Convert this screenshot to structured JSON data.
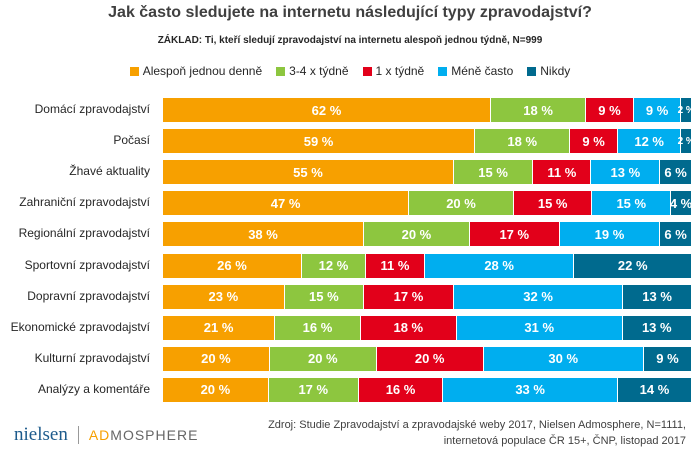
{
  "chart_data": {
    "type": "bar",
    "orientation": "horizontal-stacked-100",
    "title": "Jak často sledujete na internetu následující typy zpravodajství?",
    "subtitle": "ZÁKLAD: Ti, kteří sledují zpravodajství na internetu alespoň jednou týdně, N=999",
    "legend_position": "top",
    "categories": [
      "Domácí zpravodajství",
      "Počasí",
      "Žhavé aktuality",
      "Zahraniční zpravodajství",
      "Regionální zpravodajství",
      "Sportovní zpravodajství",
      "Dopravní zpravodajství",
      "Ekonomické zpravodajství",
      "Kulturní zpravodajství",
      "Analýzy a komentáře"
    ],
    "series": [
      {
        "name": "Alespoň jednou denně",
        "color": "#f7a000",
        "values": [
          62,
          59,
          55,
          47,
          38,
          26,
          23,
          21,
          20,
          20
        ]
      },
      {
        "name": "3-4 x týdně",
        "color": "#8dc63f",
        "values": [
          18,
          18,
          15,
          20,
          20,
          12,
          15,
          16,
          20,
          17
        ]
      },
      {
        "name": "1 x týdně",
        "color": "#e2001a",
        "values": [
          9,
          9,
          11,
          15,
          17,
          11,
          17,
          18,
          20,
          16
        ]
      },
      {
        "name": "Méně často",
        "color": "#00aeef",
        "values": [
          9,
          12,
          13,
          15,
          19,
          28,
          32,
          31,
          30,
          33
        ]
      },
      {
        "name": "Nikdy",
        "color": "#006a8e",
        "values": [
          2,
          2,
          6,
          4,
          6,
          22,
          13,
          13,
          9,
          14
        ]
      }
    ],
    "unit": "%"
  },
  "source": {
    "line1": "Zdroj: Studie Zpravodajství a zpravodajské weby 2017, Nielsen Admosphere, N=1111,",
    "line2": "internetová populace ČR 15+, ČNP, listopad 2017"
  },
  "logos": {
    "nielsen": "nielsen",
    "admosphere_a": "AD",
    "admosphere_b": "MOSPHERE"
  }
}
